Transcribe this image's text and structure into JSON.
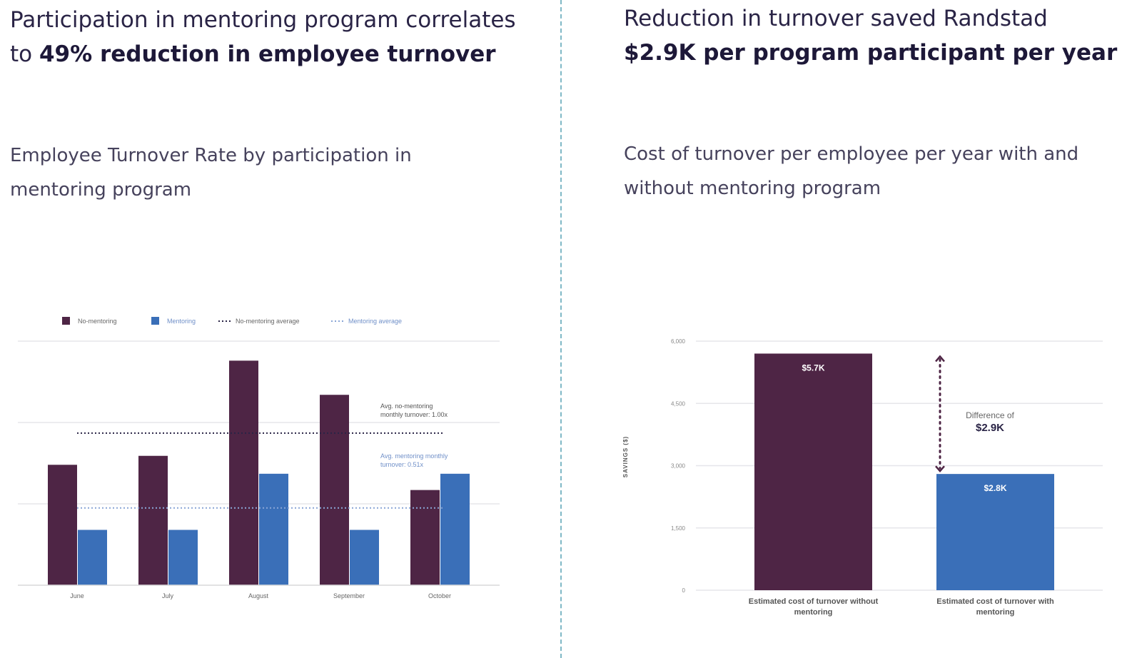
{
  "left": {
    "headline_plain": "Participation in mentoring program correlates to ",
    "headline_bold": "49% reduction in employee turnover",
    "subtitle": "Employee Turnover Rate by participation in mentoring program"
  },
  "right": {
    "headline_plain": "Reduction in turnover saved Randstad ",
    "headline_bold": "$2.9K per program participant per year",
    "subtitle": "Cost of turnover per employee per year with and without mentoring program"
  },
  "colors": {
    "no_mentoring": "#4e2545",
    "mentoring": "#3a6fb8",
    "grid": "#e6e6ea",
    "divider": "#7fb8c6"
  },
  "chart_data": [
    {
      "type": "bar",
      "categories": [
        "June",
        "July",
        "August",
        "September",
        "October"
      ],
      "series": [
        {
          "name": "No-mentoring",
          "values": [
            1.48,
            1.59,
            2.76,
            2.34,
            1.17
          ]
        },
        {
          "name": "Mentoring",
          "values": [
            0.68,
            0.68,
            1.37,
            0.68,
            1.37
          ]
        }
      ],
      "legend": [
        "No-mentoring",
        "Mentoring",
        "No-mentoring average",
        "Mentoring average"
      ],
      "averages": {
        "no_mentoring": 1.87,
        "mentoring": 0.95
      },
      "annotations": {
        "no_mentoring_avg": "Avg. no-mentoring monthly turnover: 1.00x",
        "mentoring_avg": "Avg. mentoring monthly turnover: 0.51x"
      },
      "ylim": [
        0,
        3
      ],
      "grid": true,
      "legend_placement": "top-left"
    },
    {
      "type": "bar",
      "categories": [
        "Estimated cost of turnover without mentoring",
        "Estimated cost of turnover with mentoring"
      ],
      "values": [
        5700,
        2800
      ],
      "data_labels": [
        "$5.7K",
        "$2.8K"
      ],
      "ylabel": "SAVINGS ($)",
      "yticks": [
        "0",
        "1,500",
        "3,000",
        "4,500",
        "6,000"
      ],
      "ytick_values": [
        0,
        1500,
        3000,
        4500,
        6000
      ],
      "ylim": [
        0,
        6000
      ],
      "annotation": {
        "label": "Difference of",
        "value": "$2.9K"
      },
      "grid": true
    }
  ]
}
